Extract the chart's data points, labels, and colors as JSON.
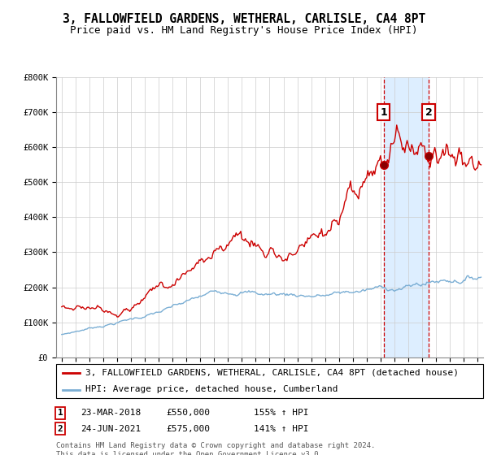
{
  "title": "3, FALLOWFIELD GARDENS, WETHERAL, CARLISLE, CA4 8PT",
  "subtitle": "Price paid vs. HM Land Registry's House Price Index (HPI)",
  "footer": "Contains HM Land Registry data © Crown copyright and database right 2024.\nThis data is licensed under the Open Government Licence v3.0.",
  "legend_line1": "3, FALLOWFIELD GARDENS, WETHERAL, CARLISLE, CA4 8PT (detached house)",
  "legend_line2": "HPI: Average price, detached house, Cumberland",
  "sale1_label": "1",
  "sale2_label": "2",
  "sale1_date": "23-MAR-2018",
  "sale1_price": "£550,000",
  "sale1_hpi": "155% ↑ HPI",
  "sale2_date": "24-JUN-2021",
  "sale2_price": "£575,000",
  "sale2_hpi": "141% ↑ HPI",
  "sale1_year": 2018.22,
  "sale2_year": 2021.48,
  "sale1_value": 550000,
  "sale2_value": 575000,
  "ylim": [
    0,
    800000
  ],
  "xlim_start": 1994.6,
  "xlim_end": 2025.4,
  "red_color": "#cc0000",
  "blue_color": "#7aaed4",
  "shading_color": "#ddeeff",
  "grid_color": "#cccccc",
  "title_fontsize": 10.5,
  "subtitle_fontsize": 9,
  "tick_fontsize": 7.5,
  "legend_fontsize": 8,
  "footer_fontsize": 6.5
}
